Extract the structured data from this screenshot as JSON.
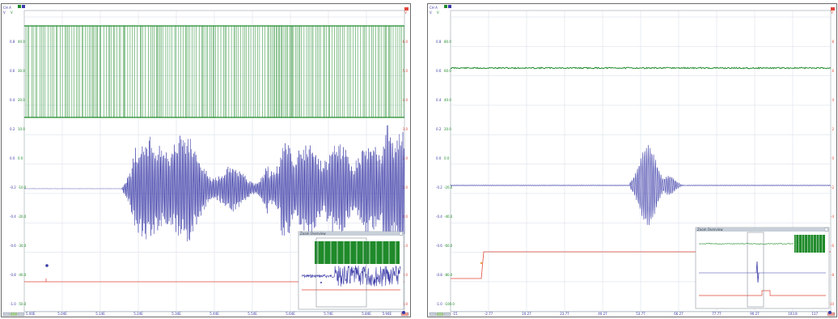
{
  "colors": {
    "green": "#1f8a2a",
    "blue": "#3b3ba8",
    "red": "#e0483a",
    "grid": "#d3dbe6",
    "overview_bar": "#c7cfd8"
  },
  "panels": [
    {
      "id": "left",
      "header": {
        "label": "CH A",
        "unit_left": "V",
        "unit_mid": "V",
        "unit_right": "V"
      },
      "y_outer": [
        "0.8",
        "0.6",
        "0.4",
        "0.2",
        "0.0",
        "-0.2",
        "-0.4",
        "-0.6",
        "-0.8",
        "-1.0"
      ],
      "y_inner": [
        "40.0",
        "30.0",
        "20.0",
        "10.0",
        "0.0",
        "-10.0",
        "-20.0",
        "-30.0",
        "-40.0",
        "-50.0"
      ],
      "y_right": [
        "6.0",
        "5.0",
        "4.0",
        "3.0",
        "2.0",
        "1.0",
        "0.0",
        "-1.0",
        "-2.0",
        "-3.0"
      ],
      "x_ticks": [
        "5.04E",
        "5.14E",
        "5.24E",
        "5.34E",
        "5.44E",
        "5.54E",
        "5.64E",
        "5.74E",
        "5.84E"
      ],
      "x_left_label": "5.00E",
      "x_right_label": "5.94E",
      "overview_title": "Zoom Overview"
    },
    {
      "id": "right",
      "header": {
        "label": "CH A",
        "unit_left": "V",
        "unit_mid": "V",
        "unit_right": "V"
      },
      "y_outer": [
        "0.8",
        "0.6",
        "0.4",
        "0.2",
        "0.0",
        "-0.2",
        "-0.4",
        "-0.6",
        "-0.8",
        "-1.0"
      ],
      "y_inner": [
        "80.0",
        "60.0",
        "40.0",
        "20.0",
        "0.0",
        "-20.0",
        "-40.0",
        "-60.0",
        "-80.0",
        "-100.0"
      ],
      "y_right": [
        "8",
        "6",
        "4",
        "2",
        "0",
        "-2",
        "-4",
        "-6",
        "-8",
        "-10"
      ],
      "x_ticks": [
        "-2.77",
        "10.27",
        "23.77",
        "40.27",
        "53.77",
        "66.27",
        "77.77",
        "90.27",
        "103.8"
      ],
      "x_left_label": "-15",
      "x_right_label": "117",
      "overview_title": "Zoom Overview"
    }
  ]
}
